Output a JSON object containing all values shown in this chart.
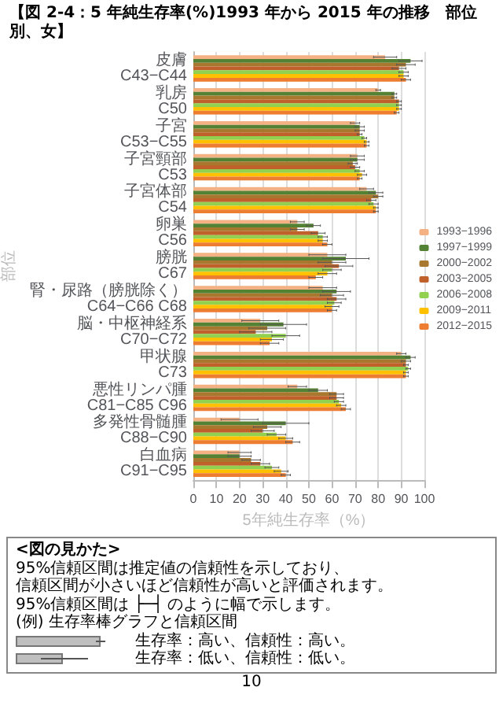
{
  "chart_data": {
    "type": "bar",
    "orientation": "horizontal",
    "title": "【図 2-4：5 年純生存率(%)1993 年から 2015 年の推移　部位別、女】",
    "xlabel": "5年純生存率（%）",
    "ylabel": "部位",
    "categories": [
      "皮膚 C43−C44",
      "乳房 C50",
      "子宮 C53−C55",
      "子宮頸部 C53",
      "子宮体部 C54",
      "卵巣 C56",
      "膀胱 C67",
      "腎・尿路（膀胱除く） C64−C66 C68",
      "脳・中枢神経系 C70−C72",
      "甲状腺 C73",
      "悪性リンパ腫 C81−C85 C96",
      "多発性骨髄腫 C88−C90",
      "白血病 C91−C95"
    ],
    "series": [
      {
        "name": "1993−1996",
        "color": "#f4b183",
        "values": [
          83,
          80,
          70,
          71,
          75,
          45,
          58,
          56,
          29,
          90,
          45,
          20,
          20
        ],
        "errors": [
          5,
          1,
          2,
          3,
          3,
          3,
          8,
          6,
          8,
          2,
          4,
          8,
          5
        ]
      },
      {
        "name": "1997−1999",
        "color": "#548235",
        "values": [
          94,
          87,
          72,
          71,
          79,
          52,
          66,
          62,
          39,
          94,
          54,
          40,
          20
        ],
        "errors": [
          5,
          1,
          2,
          3,
          3,
          3,
          10,
          6,
          10,
          2,
          4,
          10,
          5
        ]
      },
      {
        "name": "2000−2002",
        "color": "#a8782e",
        "values": [
          92,
          87,
          72,
          69,
          80,
          45,
          60,
          60,
          32,
          92,
          62,
          32,
          25
        ],
        "errors": [
          4,
          1,
          2,
          2,
          2,
          3,
          6,
          5,
          8,
          2,
          3,
          6,
          4
        ]
      },
      {
        "name": "2003−2005",
        "color": "#c0602a",
        "values": [
          89,
          89,
          72,
          70,
          77,
          54,
          63,
          62,
          27,
          92,
          62,
          30,
          29
        ],
        "errors": [
          3,
          1,
          1,
          2,
          2,
          3,
          6,
          4,
          7,
          1,
          3,
          5,
          4
        ]
      },
      {
        "name": "2006−2008",
        "color": "#92d050",
        "values": [
          91,
          89,
          74,
          72,
          78,
          56,
          60,
          61,
          40,
          93,
          63,
          36,
          34
        ],
        "errors": [
          2,
          1,
          1,
          2,
          2,
          2,
          4,
          3,
          6,
          1,
          2,
          4,
          3
        ]
      },
      {
        "name": "2009−2011",
        "color": "#ffc000",
        "values": [
          91,
          89,
          75,
          73,
          79,
          56,
          58,
          60,
          34,
          92,
          64,
          40,
          38
        ],
        "errors": [
          2,
          1,
          1,
          2,
          1,
          2,
          4,
          3,
          5,
          1,
          2,
          3,
          3
        ]
      },
      {
        "name": "2012−2015",
        "color": "#ed7d31",
        "values": [
          92,
          88,
          75,
          72,
          79,
          58,
          53,
          60,
          33,
          92,
          66,
          43,
          40
        ],
        "errors": [
          2,
          1,
          1,
          1,
          1,
          2,
          3,
          2,
          4,
          1,
          2,
          3,
          2
        ]
      }
    ],
    "xlim": [
      0,
      100
    ],
    "xticks": [
      0,
      10,
      20,
      30,
      40,
      50,
      60,
      70,
      80,
      90,
      100
    ],
    "grid": "x",
    "legend": "right",
    "annotations": [
      "<図の見かた>",
      "95%信頼区間は推定値の信頼性を示しており、",
      "信頼区間が小さいほど信頼性が高いと評価されます。",
      "95%信頼区間は ├─┤ のように幅で示します。",
      "(例) 生存率棒グラフと信頼区間",
      "生存率：高い、信頼性：高い。",
      "生存率：低い、信頼性：低い。",
      "10"
    ]
  }
}
